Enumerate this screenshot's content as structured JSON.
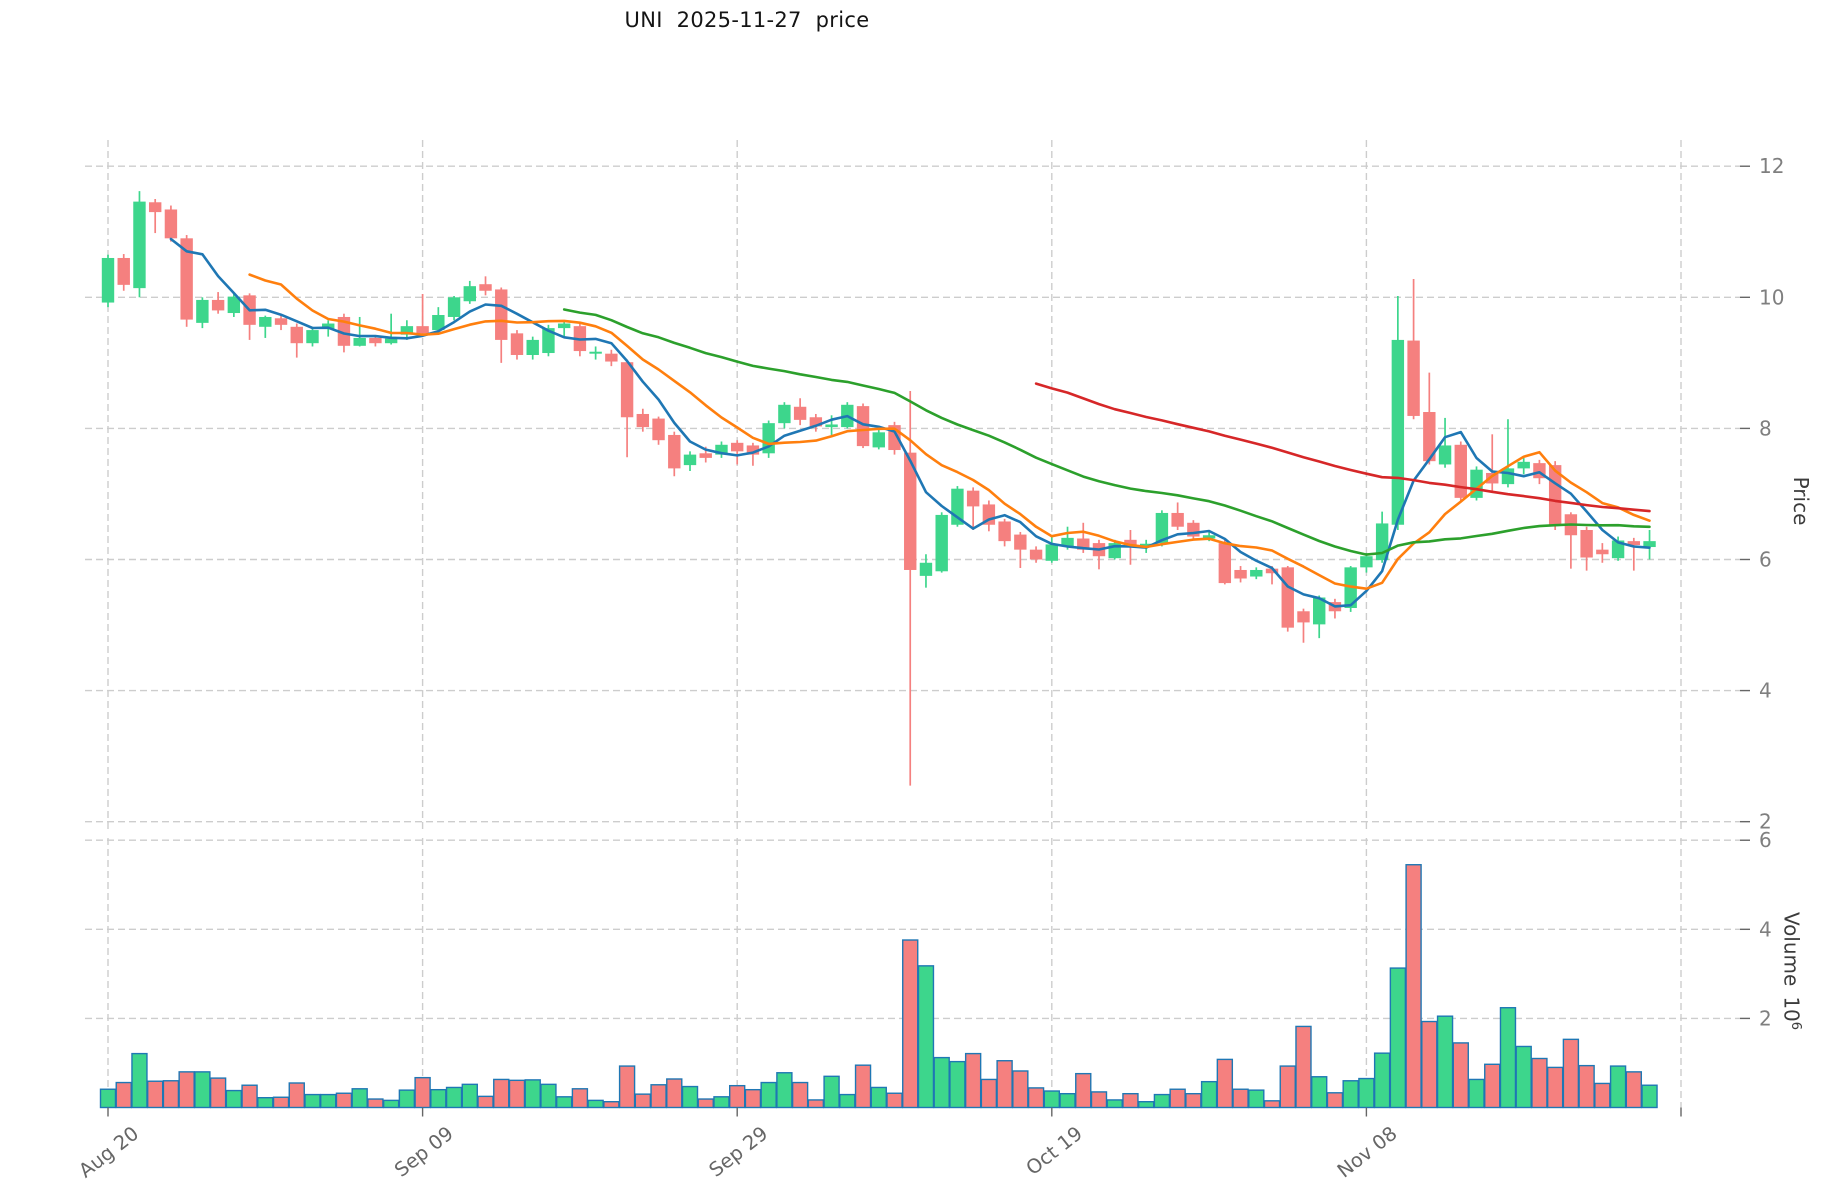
{
  "title": "UNI  2025-11-27  price",
  "axes": {
    "price_label": "Price",
    "volume_label": "Volume",
    "volume_unit_base": "10",
    "volume_unit_exp": "6",
    "price_ticks": [
      2,
      4,
      6,
      8,
      10,
      12
    ],
    "volume_ticks": [
      2,
      4,
      6
    ],
    "x_ticks": [
      {
        "i": 0,
        "label": "Aug 20"
      },
      {
        "i": 20,
        "label": "Sep 09"
      },
      {
        "i": 40,
        "label": "Sep 29"
      },
      {
        "i": 60,
        "label": "Oct 19"
      },
      {
        "i": 80,
        "label": "Nov 08"
      },
      {
        "i": 100,
        "label": ""
      }
    ]
  },
  "colors": {
    "up": "#3dd68c",
    "down": "#f5807f",
    "volume_edge": "#1f77b4",
    "ma5": "#1f77b4",
    "ma10": "#ff7f0e",
    "ma30": "#2ca02c",
    "ma60": "#d62728",
    "grid": "#cdcdcd",
    "tick_text": "#7f7f7f",
    "date_text": "#666666"
  },
  "chart_data": {
    "type": "candlestick",
    "symbol": "UNI",
    "as_of_date": "2025-11-27",
    "title": "UNI  2025-11-27  price",
    "x_is_daily": true,
    "first_x_tick_label": "Aug 20",
    "price_ylim": [
      1.85,
      12.4
    ],
    "volume_unit": "10^6",
    "volume_ylim": [
      0,
      6.05
    ],
    "grid": "dashed",
    "moving_averages": [
      {
        "window": 5,
        "color_key": "ma5"
      },
      {
        "window": 10,
        "color_key": "ma10"
      },
      {
        "window": 30,
        "color_key": "ma30"
      },
      {
        "window": 60,
        "color_key": "ma60"
      }
    ],
    "open": [
      9.92,
      10.6,
      10.14,
      11.45,
      11.34,
      10.9,
      9.61,
      9.96,
      9.76,
      10.03,
      9.55,
      9.68,
      9.55,
      9.3,
      9.52,
      9.7,
      9.26,
      9.38,
      9.3,
      9.43,
      9.56,
      9.5,
      9.7,
      9.94,
      10.2,
      10.12,
      9.45,
      9.12,
      9.15,
      9.53,
      9.56,
      9.14,
      9.14,
      9.01,
      8.22,
      8.15,
      7.9,
      7.44,
      7.62,
      7.6,
      7.78,
      7.74,
      7.62,
      8.08,
      8.33,
      8.17,
      8.02,
      8.02,
      8.34,
      7.71,
      8.05,
      7.63,
      5.75,
      5.82,
      6.53,
      7.05,
      6.84,
      6.58,
      6.38,
      6.15,
      5.98,
      6.2,
      6.32,
      6.25,
      6.02,
      6.3,
      6.21,
      6.25,
      6.71,
      6.56,
      6.32,
      6.25,
      5.84,
      5.74,
      5.86,
      5.88,
      5.21,
      5.01,
      5.35,
      5.26,
      5.88,
      5.99,
      6.53,
      9.34,
      8.25,
      7.45,
      7.75,
      6.94,
      7.32,
      7.15,
      7.39,
      7.47,
      7.44,
      6.69,
      6.45,
      6.15,
      6.02,
      6.28,
      6.19
    ],
    "high": [
      10.65,
      10.66,
      11.62,
      11.5,
      11.4,
      10.95,
      10.0,
      10.08,
      10.05,
      10.06,
      9.72,
      9.74,
      9.6,
      9.55,
      9.65,
      9.75,
      9.7,
      9.42,
      9.75,
      9.65,
      10.05,
      9.85,
      10.02,
      10.25,
      10.32,
      10.15,
      9.5,
      9.4,
      9.58,
      9.65,
      9.6,
      9.25,
      9.2,
      9.05,
      8.3,
      8.18,
      7.95,
      7.65,
      7.72,
      7.8,
      7.82,
      7.78,
      8.12,
      8.4,
      8.46,
      8.22,
      8.2,
      8.4,
      8.38,
      8.0,
      8.1,
      8.57,
      6.08,
      6.72,
      7.12,
      7.1,
      6.9,
      6.62,
      6.42,
      6.2,
      6.35,
      6.5,
      6.56,
      6.3,
      6.3,
      6.45,
      6.3,
      6.75,
      6.87,
      6.6,
      6.42,
      6.3,
      5.9,
      5.88,
      5.9,
      5.9,
      5.25,
      5.45,
      5.4,
      5.9,
      6.1,
      6.73,
      10.02,
      10.28,
      8.85,
      8.16,
      7.8,
      7.42,
      7.91,
      8.14,
      7.55,
      7.52,
      7.5,
      6.72,
      6.5,
      6.25,
      6.35,
      6.33,
      6.45
    ],
    "low": [
      9.85,
      10.1,
      10.0,
      10.98,
      10.85,
      9.55,
      9.53,
      9.75,
      9.7,
      9.35,
      9.38,
      9.5,
      9.08,
      9.25,
      9.4,
      9.16,
      9.25,
      9.25,
      9.28,
      9.35,
      9.4,
      9.45,
      9.65,
      9.9,
      10.03,
      9.0,
      9.05,
      9.05,
      9.1,
      9.4,
      9.1,
      9.05,
      8.95,
      7.56,
      7.95,
      7.75,
      7.27,
      7.35,
      7.48,
      7.55,
      7.45,
      7.43,
      7.55,
      8.0,
      8.05,
      7.95,
      7.9,
      8.0,
      7.7,
      7.68,
      7.6,
      2.55,
      5.57,
      5.8,
      6.5,
      6.45,
      6.43,
      6.2,
      5.87,
      5.95,
      5.95,
      6.15,
      6.1,
      5.85,
      6.0,
      5.92,
      6.1,
      6.2,
      6.45,
      6.3,
      6.28,
      5.62,
      5.65,
      5.7,
      5.62,
      4.9,
      4.73,
      4.8,
      5.1,
      5.2,
      5.8,
      5.95,
      6.45,
      8.14,
      7.45,
      7.4,
      6.9,
      6.9,
      7.05,
      7.1,
      7.3,
      7.15,
      6.45,
      5.86,
      5.83,
      5.95,
      5.98,
      5.83,
      6.0
    ],
    "close": [
      10.6,
      10.19,
      11.46,
      11.3,
      10.9,
      9.66,
      9.96,
      9.8,
      10.01,
      9.58,
      9.7,
      9.58,
      9.3,
      9.5,
      9.6,
      9.26,
      9.38,
      9.3,
      9.37,
      9.56,
      9.45,
      9.73,
      10.0,
      10.17,
      10.1,
      9.35,
      9.12,
      9.35,
      9.53,
      9.6,
      9.18,
      9.17,
      9.02,
      8.17,
      8.02,
      7.82,
      7.39,
      7.6,
      7.55,
      7.75,
      7.65,
      7.6,
      8.08,
      8.36,
      8.13,
      8.03,
      8.06,
      8.36,
      7.73,
      7.94,
      7.67,
      5.84,
      5.95,
      6.68,
      7.08,
      6.81,
      6.53,
      6.28,
      6.15,
      6.0,
      6.23,
      6.33,
      6.15,
      6.05,
      6.25,
      6.22,
      6.24,
      6.71,
      6.5,
      6.35,
      6.37,
      5.64,
      5.71,
      5.84,
      5.79,
      4.96,
      5.04,
      5.42,
      5.21,
      5.88,
      6.05,
      6.55,
      9.35,
      8.19,
      7.5,
      7.74,
      6.94,
      7.37,
      7.16,
      7.39,
      7.49,
      7.24,
      6.53,
      6.37,
      6.03,
      6.08,
      6.29,
      6.22,
      6.28
    ],
    "volume": [
      0.41,
      0.56,
      1.21,
      0.59,
      0.6,
      0.8,
      0.8,
      0.66,
      0.38,
      0.5,
      0.22,
      0.23,
      0.55,
      0.29,
      0.29,
      0.32,
      0.42,
      0.19,
      0.16,
      0.39,
      0.67,
      0.4,
      0.45,
      0.52,
      0.25,
      0.63,
      0.61,
      0.62,
      0.52,
      0.24,
      0.42,
      0.16,
      0.13,
      0.93,
      0.3,
      0.51,
      0.64,
      0.47,
      0.19,
      0.24,
      0.49,
      0.4,
      0.56,
      0.78,
      0.56,
      0.17,
      0.7,
      0.29,
      0.95,
      0.45,
      0.32,
      3.76,
      3.18,
      1.12,
      1.03,
      1.21,
      0.63,
      1.05,
      0.82,
      0.44,
      0.37,
      0.31,
      0.76,
      0.35,
      0.17,
      0.31,
      0.13,
      0.29,
      0.41,
      0.31,
      0.58,
      1.08,
      0.41,
      0.39,
      0.15,
      0.93,
      1.82,
      0.69,
      0.33,
      0.6,
      0.65,
      1.22,
      3.13,
      5.45,
      1.93,
      2.05,
      1.45,
      0.63,
      0.97,
      2.24,
      1.37,
      1.1,
      0.9,
      1.53,
      0.94,
      0.54,
      0.93,
      0.8,
      0.5
    ]
  }
}
